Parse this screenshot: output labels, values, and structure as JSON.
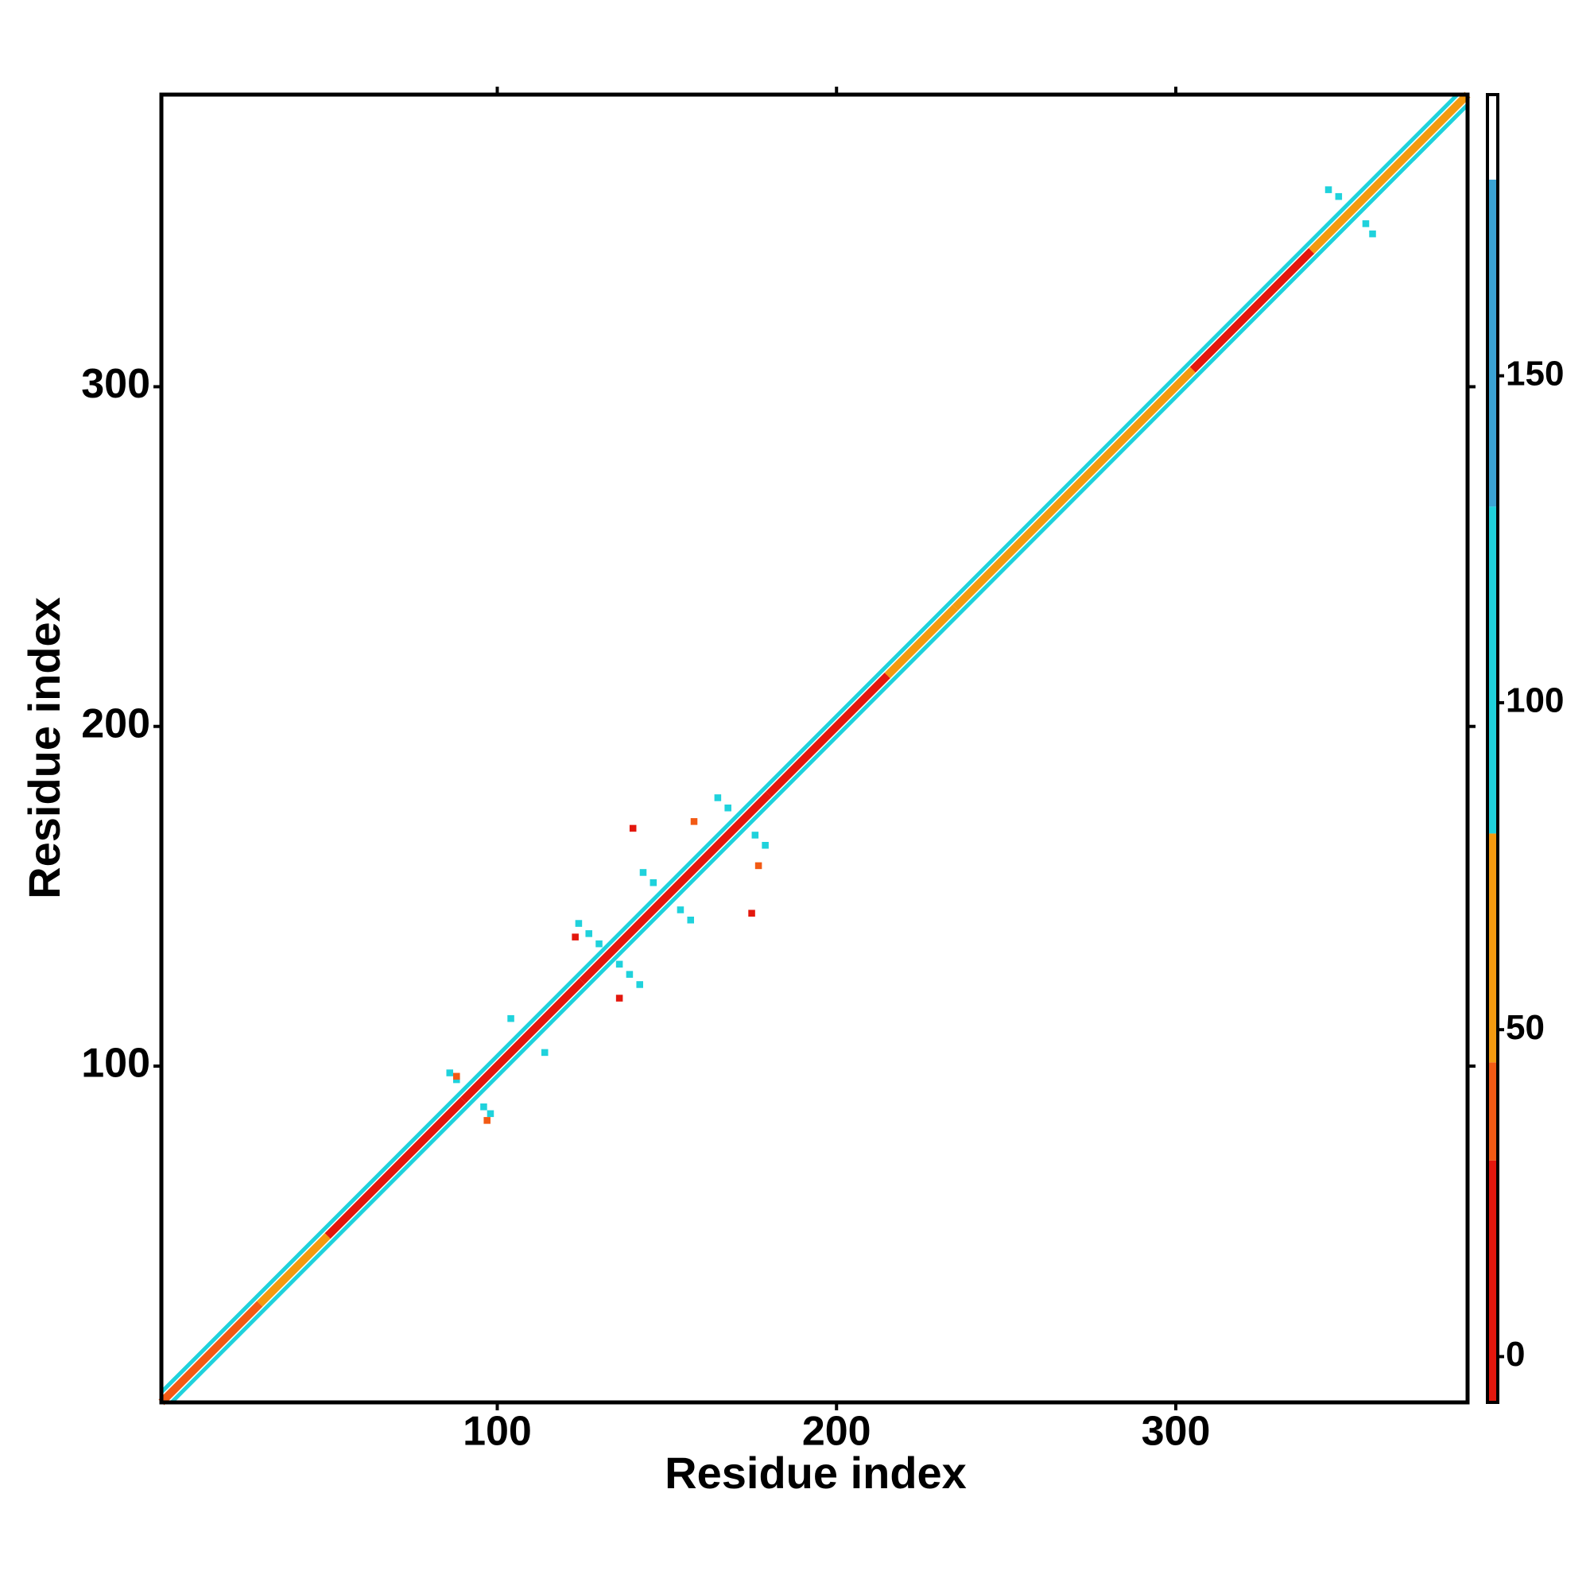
{
  "chart_data": {
    "type": "heatmap",
    "x_label": "Residue index",
    "y_label": "Residue index",
    "xlim": [
      1,
      386
    ],
    "ylim": [
      1,
      386
    ],
    "xticks": [
      100,
      200,
      300
    ],
    "yticks": [
      100,
      200,
      300
    ],
    "colorbar": {
      "lim": [
        -7,
        193
      ],
      "ticks": [
        0,
        50,
        100,
        150
      ],
      "bins": [
        -7,
        30,
        45,
        80,
        130,
        180,
        193
      ],
      "colors": [
        "#e3170d",
        "#f25a14",
        "#f39a10",
        "#1fd2dc",
        "#3ba3d4",
        "#ffffff"
      ]
    },
    "diagonals": [
      {
        "offset": 0,
        "start": [
          1,
          30,
          50,
          90,
          125,
          180,
          215,
          235,
          305,
          340
        ],
        "end": [
          30,
          50,
          90,
          125,
          180,
          215,
          235,
          305,
          340,
          386
        ],
        "values": [
          40,
          60,
          20,
          25,
          15,
          20,
          60,
          60,
          25,
          60
        ]
      },
      {
        "offset": 3,
        "start": [
          1
        ],
        "end": [
          383
        ],
        "values": [
          95
        ]
      },
      {
        "offset": -3,
        "start": [
          4
        ],
        "end": [
          386
        ],
        "values": [
          95
        ]
      }
    ],
    "cells": {
      "x": [
        88,
        86,
        96,
        98,
        127,
        124,
        139,
        142,
        130,
        136,
        146,
        143,
        154,
        157,
        168,
        165,
        176,
        179,
        348,
        345,
        356,
        358,
        114,
        104,
        88,
        97,
        123,
        136,
        158,
        177,
        140,
        175
      ],
      "y": [
        96,
        98,
        88,
        86,
        139,
        142,
        127,
        124,
        136,
        130,
        154,
        157,
        146,
        143,
        176,
        179,
        168,
        165,
        356,
        358,
        348,
        345,
        104,
        114,
        97,
        84,
        138,
        120,
        172,
        159,
        170,
        145
      ],
      "values": [
        130,
        130,
        130,
        130,
        130,
        130,
        130,
        130,
        130,
        130,
        100,
        100,
        130,
        130,
        100,
        100,
        100,
        100,
        130,
        100,
        100,
        100,
        95,
        95,
        35,
        35,
        30,
        30,
        40,
        40,
        20,
        20
      ]
    }
  }
}
